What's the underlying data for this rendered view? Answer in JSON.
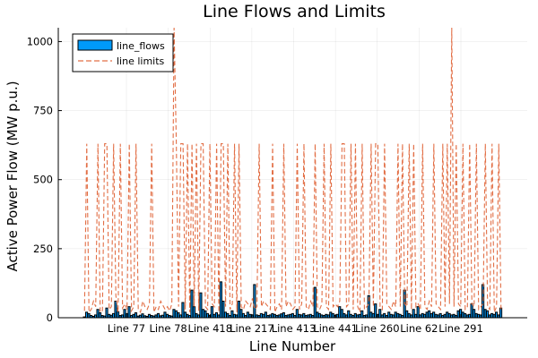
{
  "chart_data": {
    "type": "bar",
    "title": "Line Flows and Limits",
    "xlabel": "Line Number",
    "ylabel": "Active Power Flow (MW p.u.)",
    "ylim": [
      0,
      1050
    ],
    "yticks": [
      0,
      250,
      500,
      750,
      1000
    ],
    "xtick_labels": [
      "Line 77",
      "Line 78",
      "Line 418",
      "Line 217",
      "Line 413",
      "Line 441",
      "Line 260",
      "Line 62",
      "Line 291"
    ],
    "grid": true,
    "legend_position": "top-left",
    "series": [
      {
        "name": "line_flows",
        "style": "bar",
        "color": "#009AFA",
        "values": [
          3,
          20,
          15,
          8,
          5,
          10,
          30,
          18,
          8,
          6,
          35,
          12,
          9,
          15,
          60,
          22,
          8,
          10,
          30,
          15,
          40,
          8,
          12,
          18,
          6,
          9,
          14,
          7,
          5,
          12,
          8,
          6,
          10,
          15,
          7,
          9,
          20,
          12,
          8,
          6,
          30,
          25,
          18,
          10,
          55,
          20,
          12,
          8,
          100,
          40,
          15,
          10,
          90,
          30,
          25,
          15,
          8,
          40,
          12,
          18,
          10,
          130,
          60,
          20,
          15,
          8,
          25,
          12,
          10,
          60,
          30,
          15,
          8,
          20,
          12,
          10,
          120,
          10,
          8,
          15,
          12,
          20,
          8,
          10,
          15,
          12,
          8,
          10,
          14,
          18,
          8,
          10,
          12,
          15,
          8,
          30,
          12,
          10,
          15,
          8,
          10,
          12,
          8,
          110,
          20,
          15,
          10,
          8,
          12,
          10,
          20,
          15,
          8,
          12,
          40,
          30,
          15,
          10,
          25,
          12,
          8,
          15,
          10,
          12,
          25,
          8,
          10,
          80,
          20,
          15,
          50,
          12,
          30,
          10,
          15,
          8,
          20,
          12,
          10,
          20,
          15,
          12,
          8,
          100,
          25,
          15,
          10,
          30,
          12,
          40,
          10,
          15,
          12,
          20,
          25,
          15,
          20,
          12,
          10,
          15,
          8,
          12,
          20,
          15,
          10,
          12,
          8,
          25,
          30,
          20,
          15,
          10,
          12,
          50,
          30,
          15,
          12,
          10,
          120,
          30,
          25,
          10,
          15,
          12,
          20,
          10,
          35
        ]
      },
      {
        "name": "line limits",
        "style": "dashed",
        "color": "#E26F46",
        "values": [
          25,
          630,
          20,
          30,
          60,
          40,
          630,
          25,
          20,
          630,
          630,
          30,
          40,
          630,
          80,
          20,
          630,
          35,
          50,
          30,
          630,
          25,
          40,
          630,
          30,
          20,
          60,
          40,
          30,
          50,
          630,
          20,
          40,
          30,
          60,
          45,
          30,
          40,
          25,
          50,
          1050,
          630,
          40,
          630,
          630,
          30,
          630,
          20,
          630,
          40,
          630,
          25,
          630,
          630,
          40,
          30,
          630,
          50,
          40,
          630,
          20,
          630,
          630,
          40,
          630,
          30,
          50,
          630,
          20,
          630,
          40,
          30,
          60,
          50,
          40,
          70,
          30,
          40,
          630,
          40,
          60,
          50,
          40,
          30,
          630,
          20,
          40,
          50,
          30,
          630,
          40,
          60,
          50,
          30,
          40,
          630,
          30,
          50,
          630,
          40,
          30,
          60,
          40,
          630,
          40,
          30,
          50,
          630,
          40,
          30,
          630,
          40,
          50,
          40,
          60,
          630,
          630,
          40,
          50,
          630,
          30,
          630,
          40,
          20,
          630,
          30,
          40,
          50,
          630,
          40,
          630,
          630,
          40,
          30,
          630,
          50,
          40,
          30,
          60,
          40,
          630,
          40,
          630,
          50,
          40,
          630,
          30,
          630,
          40,
          50,
          30,
          630,
          40,
          30,
          60,
          40,
          630,
          50,
          40,
          30,
          630,
          40,
          630,
          50,
          1050,
          40,
          630,
          50,
          40,
          630,
          30,
          40,
          630,
          50,
          40,
          630,
          30,
          40,
          50,
          630,
          40,
          30,
          630,
          20,
          40,
          630,
          30
        ]
      }
    ]
  }
}
